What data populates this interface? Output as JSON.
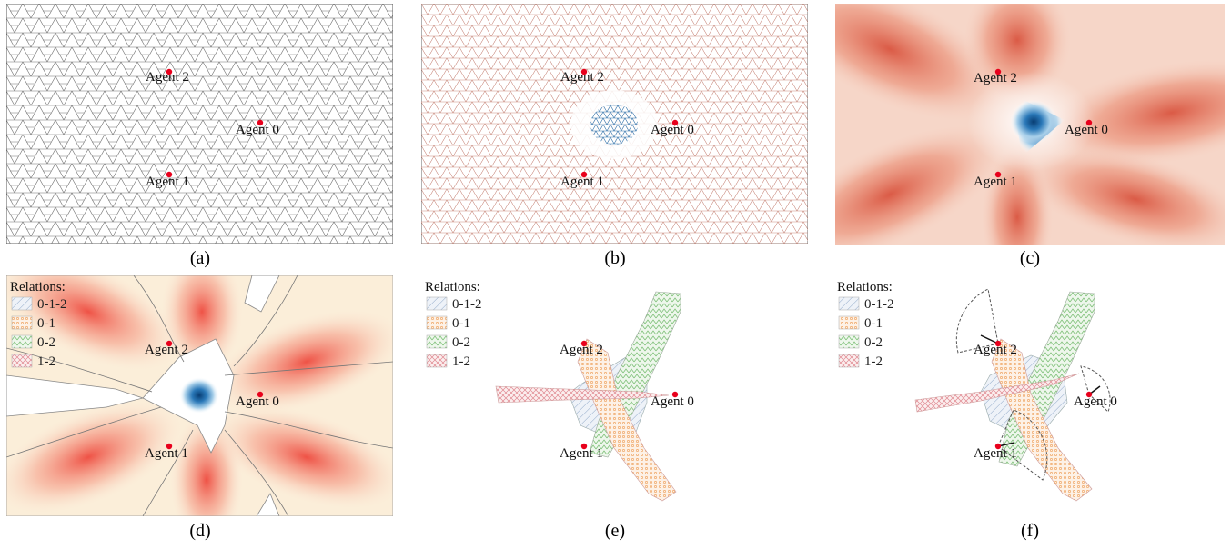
{
  "captions": [
    "(a)",
    "(b)",
    "(c)",
    "(d)",
    "(e)",
    "(f)"
  ],
  "agents": {
    "a0": "Agent 0",
    "a1": "Agent 1",
    "a2": "Agent 2"
  },
  "legend": {
    "title": "Relations:",
    "items": [
      "0-1-2",
      "0-1",
      "0-2",
      "1-2"
    ]
  },
  "colors": {
    "agent": "#e8001c",
    "mesh": "#6a6a6a",
    "rel_012": "#8fa8c8",
    "rel_01": "#f0b27a",
    "rel_02": "#8fc48a",
    "rel_12": "#e89aa0",
    "heat_red": "#e04a3a",
    "heat_blue": "#0a4f8f"
  }
}
